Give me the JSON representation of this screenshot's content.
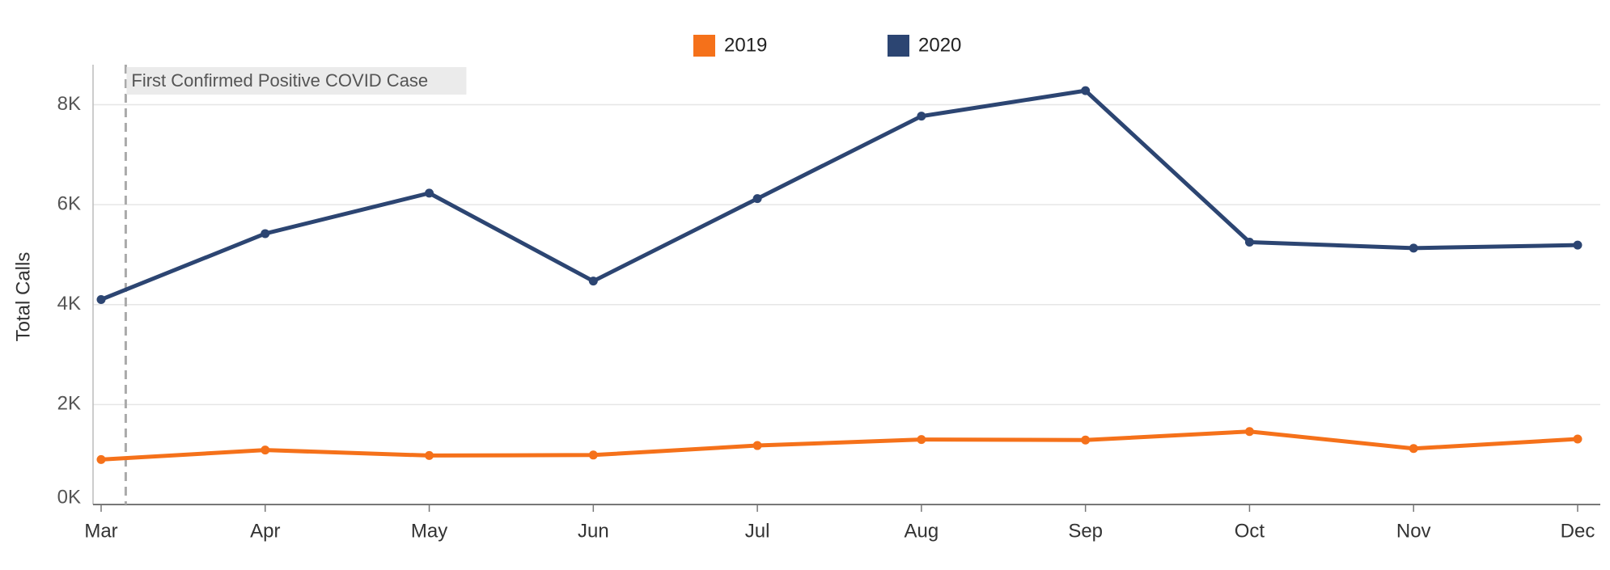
{
  "chart_data": {
    "type": "line",
    "categories": [
      "Mar",
      "Apr",
      "May",
      "Jun",
      "Jul",
      "Aug",
      "Sep",
      "Oct",
      "Nov",
      "Dec"
    ],
    "series": [
      {
        "name": "2019",
        "color": "#F5711A",
        "values": [
          900,
          1090,
          980,
          990,
          1180,
          1300,
          1290,
          1460,
          1120,
          1310
        ]
      },
      {
        "name": "2020",
        "color": "#2C4572",
        "values": [
          4100,
          5420,
          6230,
          4470,
          6120,
          7770,
          8280,
          5250,
          5130,
          5190
        ]
      }
    ],
    "ylabel": "Total Calls",
    "ylim": [
      0,
      8800
    ],
    "yticks": [
      0,
      2000,
      4000,
      6000,
      8000
    ],
    "ytick_labels": [
      "0K",
      "2K",
      "4K",
      "6K",
      "8K"
    ],
    "grid": true,
    "legend": "top-center",
    "annotation": {
      "text": "First Confirmed Positive COVID Case",
      "x_index": 0.15
    },
    "colors": {
      "reference_line": "#AAAAAA",
      "grid": "#E6E6E6",
      "annotation_bg": "#EBEBEB"
    }
  }
}
